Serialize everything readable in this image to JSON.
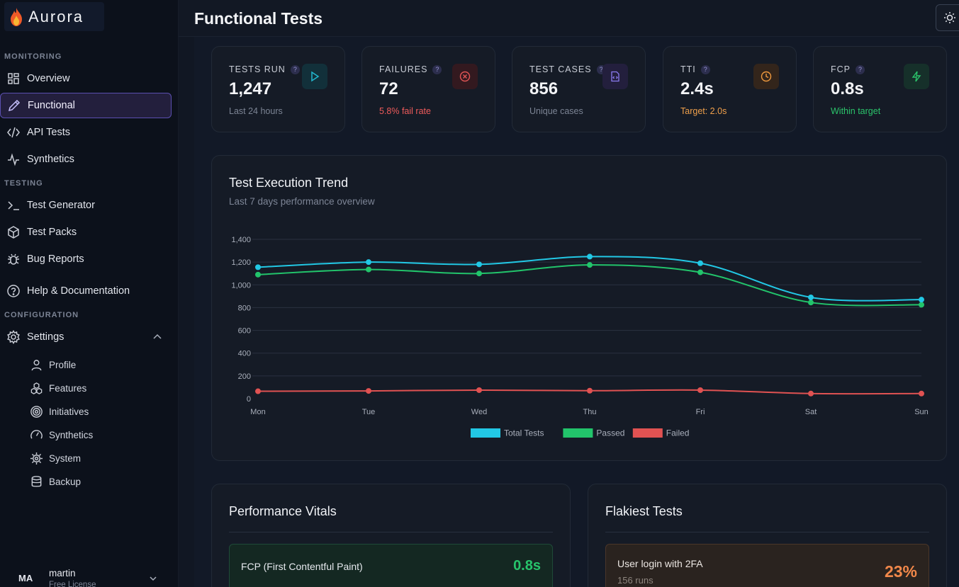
{
  "brand": {
    "name": "Aurora"
  },
  "sidebar": {
    "sections": {
      "monitoring": "MONITORING",
      "testing": "TESTING",
      "configuration": "CONFIGURATION"
    },
    "items": [
      {
        "label": "Overview",
        "icon": "grid-icon"
      },
      {
        "label": "Functional",
        "icon": "pencil-icon",
        "active": true
      },
      {
        "label": "API Tests",
        "icon": "code-icon"
      },
      {
        "label": "Synthetics",
        "icon": "activity-icon"
      },
      {
        "label": "Test Generator",
        "icon": "terminal-icon"
      },
      {
        "label": "Test Packs",
        "icon": "package-icon"
      },
      {
        "label": "Bug Reports",
        "icon": "bug-icon"
      },
      {
        "label": "Help & Documentation",
        "icon": "help-circle-icon"
      },
      {
        "label": "Settings",
        "icon": "gear-icon",
        "expanded": true
      }
    ],
    "settings_children": [
      {
        "label": "Profile",
        "icon": "user-icon"
      },
      {
        "label": "Features",
        "icon": "cubes-icon"
      },
      {
        "label": "Initiatives",
        "icon": "target-icon"
      },
      {
        "label": "Synthetics",
        "icon": "gauge-icon"
      },
      {
        "label": "System",
        "icon": "cog-icon"
      },
      {
        "label": "Backup",
        "icon": "database-icon"
      }
    ],
    "user": {
      "initials": "MA",
      "name": "martin",
      "plan": "Free License"
    }
  },
  "header": {
    "title": "Functional Tests"
  },
  "stats": [
    {
      "label": "TESTS RUN",
      "value": "1,247",
      "sub": "Last 24 hours",
      "sub_color": "#7c8494",
      "icon": "play-icon",
      "icon_color": "#22b8cf",
      "icon_bg": "#12303a"
    },
    {
      "label": "FAILURES",
      "value": "72",
      "sub": "5.8% fail rate",
      "sub_color": "#ef5b5b",
      "icon": "x-circle-icon",
      "icon_color": "#e05555",
      "icon_bg": "#33191f"
    },
    {
      "label": "TEST CASES",
      "value": "856",
      "sub": "Unique cases",
      "sub_color": "#7c8494",
      "icon": "file-code-icon",
      "icon_color": "#8b7cf0",
      "icon_bg": "#231f3d"
    },
    {
      "label": "TTI",
      "value": "2.4s",
      "sub": "Target: 2.0s",
      "sub_color": "#f0a04b",
      "icon": "clock-icon",
      "icon_color": "#f09a3e",
      "icon_bg": "#33251b"
    },
    {
      "label": "FCP",
      "value": "0.8s",
      "sub": "Within target",
      "sub_color": "#2bc46b",
      "icon": "zap-icon",
      "icon_color": "#2bc46b",
      "icon_bg": "#16302a"
    }
  ],
  "trend": {
    "title": "Test Execution Trend",
    "subtitle": "Last 7 days performance overview"
  },
  "chart_data": {
    "type": "line",
    "categories": [
      "Mon",
      "Tue",
      "Wed",
      "Thu",
      "Fri",
      "Sat",
      "Sun"
    ],
    "ylim": [
      0,
      1400
    ],
    "yticks": [
      0,
      200,
      400,
      600,
      800,
      1000,
      1200,
      1400
    ],
    "ytick_labels": [
      "0",
      "200",
      "400",
      "600",
      "800",
      "1,000",
      "1,200",
      "1,400"
    ],
    "grid": true,
    "legend": "bottom-center",
    "series": [
      {
        "name": "Total Tests",
        "color": "#22c8e5",
        "values": [
          1155,
          1200,
          1180,
          1248,
          1190,
          890,
          870
        ]
      },
      {
        "name": "Passed",
        "color": "#22c46b",
        "values": [
          1090,
          1135,
          1100,
          1175,
          1110,
          845,
          825
        ]
      },
      {
        "name": "Failed",
        "color": "#e05252",
        "values": [
          65,
          68,
          75,
          70,
          75,
          45,
          45
        ]
      }
    ]
  },
  "vitals": {
    "title": "Performance Vitals",
    "item_name": "FCP (First Contentful Paint)",
    "item_value": "0.8s"
  },
  "flaky": {
    "title": "Flakiest Tests",
    "item_name": "User login with 2FA",
    "item_runs": "156 runs",
    "item_pct": "23%"
  }
}
